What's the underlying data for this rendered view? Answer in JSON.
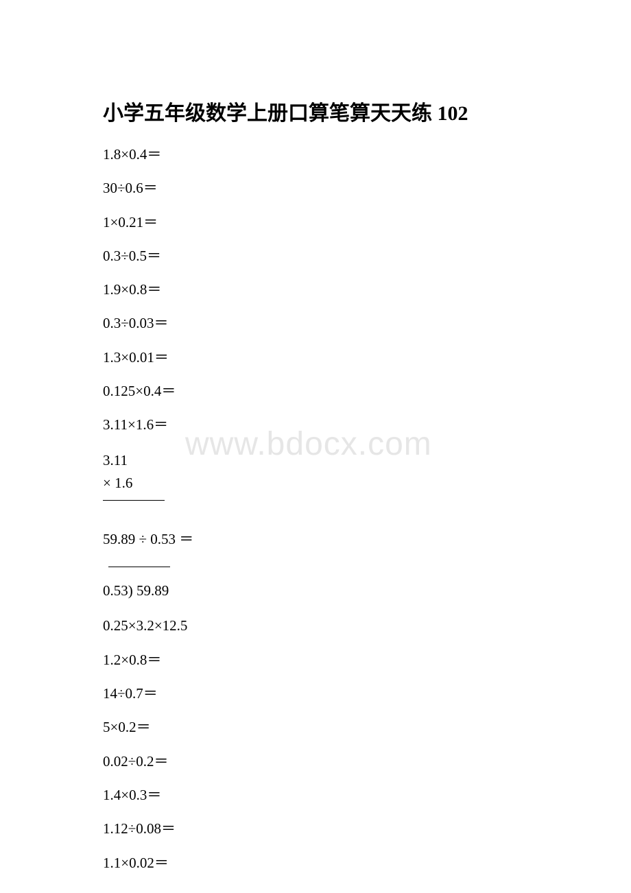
{
  "title": "小学五年级数学上册口算笔算天天练 102",
  "watermark": "www.bdocx.com",
  "problems": {
    "p1": "1.8×0.4＝",
    "p2": "30÷0.6＝",
    "p3": "1×0.21＝",
    "p4": "0.3÷0.5＝",
    "p5": "1.9×0.8＝",
    "p6": "0.3÷0.03＝",
    "p7": "1.3×0.01＝",
    "p8": "0.125×0.4＝",
    "p9": "3.11×1.6＝",
    "work1_line1": " 3.11",
    "work1_line2": "×  1.6",
    "p10": "59.89 ÷ 0.53 ＝",
    "work2_line1": "0.53) 59.89",
    "p11": "0.25×3.2×12.5",
    "p12": "1.2×0.8＝",
    "p13": "14÷0.7＝",
    "p14": "5×0.2＝",
    "p15": "0.02÷0.2＝",
    "p16": "1.4×0.3＝",
    "p17": "1.12÷0.08＝",
    "p18": "1.1×0.02＝"
  }
}
